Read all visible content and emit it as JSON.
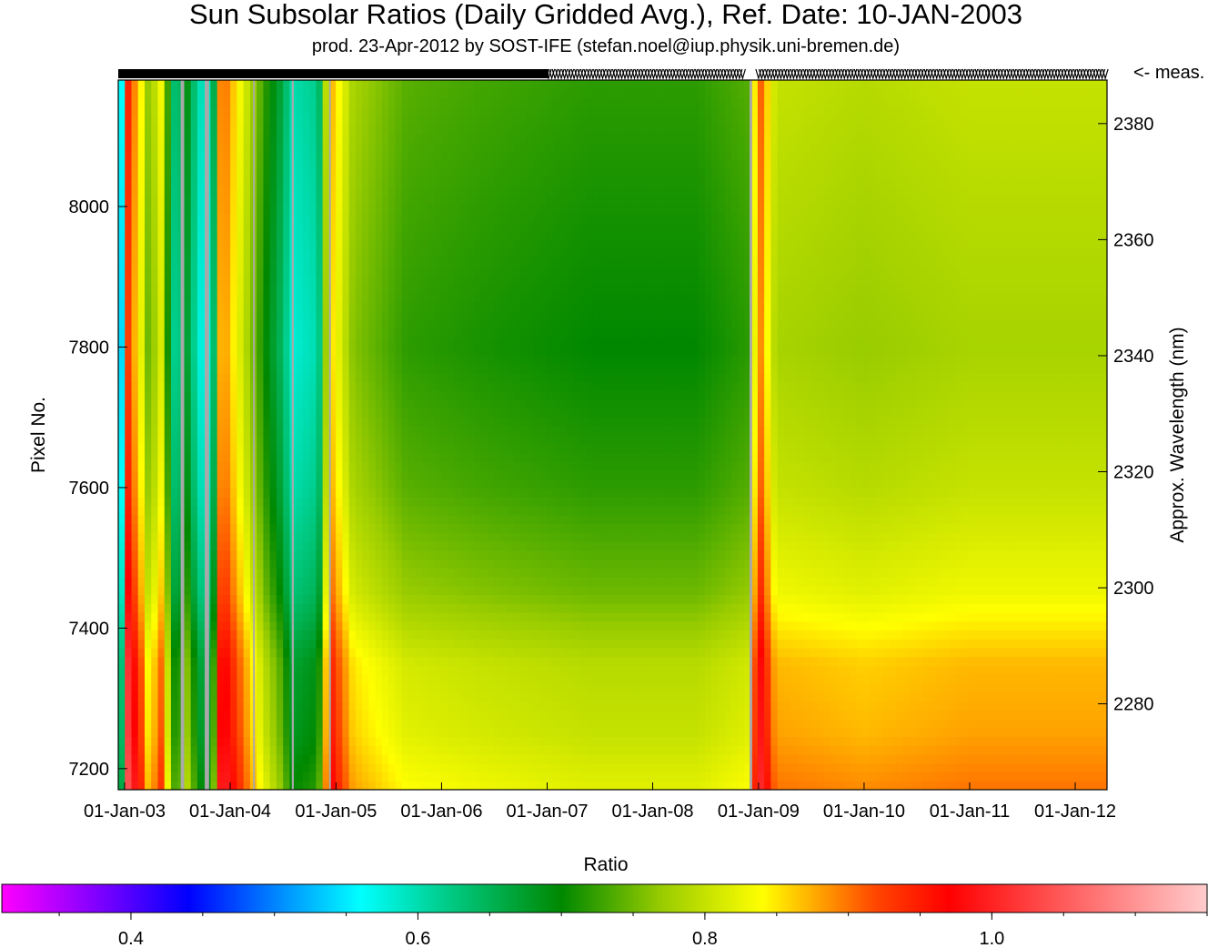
{
  "chart_data": {
    "type": "heatmap",
    "title": "Sun Subsolar Ratios (Daily Gridded Avg.), Ref. Date: 10-JAN-2003",
    "subtitle": "prod. 23-Apr-2012 by SOST-IFE (stefan.noel@iup.physik.uni-bremen.de)",
    "ylabel": "Pixel No.",
    "ylabel_right": "Approx. Wavelength (nm)",
    "measurement_label": "<- meas.",
    "x_ticks": [
      "01-Jan-03",
      "01-Jan-04",
      "01-Jan-05",
      "01-Jan-06",
      "01-Jan-07",
      "01-Jan-08",
      "01-Jan-09",
      "01-Jan-10",
      "01-Jan-11",
      "01-Jan-12"
    ],
    "xlim": [
      "2002-12-10",
      "2012-04-20"
    ],
    "y_ticks": [
      7200,
      7400,
      7600,
      7800,
      8000
    ],
    "ylim": [
      7170,
      8180
    ],
    "y_right_ticks": [
      2280,
      2300,
      2320,
      2340,
      2360,
      2380
    ],
    "y_right_lim": [
      2265.2,
      2387.5
    ],
    "colorbar": {
      "label": "Ratio",
      "ticks": [
        0.4,
        0.6,
        0.8,
        1.0
      ],
      "tick_labels": [
        "0.4",
        "0.6",
        "0.8",
        "1.0"
      ],
      "range": [
        0.31,
        1.15
      ],
      "stops": [
        {
          "value": 0.31,
          "color": "#ff00ff"
        },
        {
          "value": 0.39,
          "color": "#6600ff"
        },
        {
          "value": 0.44,
          "color": "#0000ff"
        },
        {
          "value": 0.51,
          "color": "#0099ff"
        },
        {
          "value": 0.56,
          "color": "#00ffff"
        },
        {
          "value": 0.62,
          "color": "#00cc88"
        },
        {
          "value": 0.7,
          "color": "#008800"
        },
        {
          "value": 0.77,
          "color": "#99cc00"
        },
        {
          "value": 0.84,
          "color": "#ffff00"
        },
        {
          "value": 0.92,
          "color": "#ff4400"
        },
        {
          "value": 0.97,
          "color": "#ff0000"
        },
        {
          "value": 1.15,
          "color": "#ffcccc"
        }
      ]
    },
    "time_profile": [
      {
        "date": "2002-12-10",
        "ratio": 0.58
      },
      {
        "date": "2002-12-28",
        "ratio": 0.55
      },
      {
        "date": "2003-01-06",
        "ratio": 0.96
      },
      {
        "date": "2003-02-01",
        "ratio": 0.9
      },
      {
        "date": "2003-03-01",
        "ratio": 0.84
      },
      {
        "date": "2003-04-01",
        "ratio": 0.74
      },
      {
        "date": "2003-05-01",
        "ratio": 0.86
      },
      {
        "date": "2003-06-01",
        "ratio": 0.72
      },
      {
        "date": "2003-07-01",
        "ratio": 0.6
      },
      {
        "date": "2003-08-01",
        "ratio": 0.7
      },
      {
        "date": "2003-09-01",
        "ratio": 0.63
      },
      {
        "date": "2003-10-01",
        "ratio": 0.58
      },
      {
        "date": "2003-11-01",
        "ratio": 0.61
      },
      {
        "date": "2003-12-01",
        "ratio": 0.92
      },
      {
        "date": "2004-01-01",
        "ratio": 0.88
      },
      {
        "date": "2004-03-01",
        "ratio": 0.8
      },
      {
        "date": "2004-05-01",
        "ratio": 0.72
      },
      {
        "date": "2004-07-01",
        "ratio": 0.66
      },
      {
        "date": "2004-08-01",
        "ratio": 0.6
      },
      {
        "date": "2004-11-01",
        "ratio": 0.62
      },
      {
        "date": "2004-12-10",
        "ratio": 0.88
      },
      {
        "date": "2005-03-01",
        "ratio": 0.78
      },
      {
        "date": "2005-09-01",
        "ratio": 0.74
      },
      {
        "date": "2006-06-01",
        "ratio": 0.73
      },
      {
        "date": "2007-06-01",
        "ratio": 0.72
      },
      {
        "date": "2008-06-01",
        "ratio": 0.72
      },
      {
        "date": "2008-12-15",
        "ratio": 0.74
      },
      {
        "date": "2008-12-20",
        "ratio": 0.95
      },
      {
        "date": "2009-03-01",
        "ratio": 0.8
      },
      {
        "date": "2010-01-01",
        "ratio": 0.79
      },
      {
        "date": "2011-01-01",
        "ratio": 0.8
      },
      {
        "date": "2012-04-20",
        "ratio": 0.8
      }
    ],
    "pixel_profile": [
      {
        "pixel": 7170,
        "ratio_offset": 0.1
      },
      {
        "pixel": 7250,
        "ratio_offset": 0.08
      },
      {
        "pixel": 7350,
        "ratio_offset": 0.07
      },
      {
        "pixel": 7450,
        "ratio_offset": 0.03
      },
      {
        "pixel": 7600,
        "ratio_offset": 0.0
      },
      {
        "pixel": 7800,
        "ratio_offset": -0.02
      },
      {
        "pixel": 8000,
        "ratio_offset": -0.01
      },
      {
        "pixel": 8180,
        "ratio_offset": 0.0
      }
    ],
    "data_gaps": [
      {
        "start": "2003-07-14",
        "end": "2003-07-26"
      },
      {
        "start": "2003-10-05",
        "end": "2003-10-20"
      },
      {
        "start": "2004-03-20",
        "end": "2004-03-26"
      },
      {
        "start": "2004-08-01",
        "end": "2004-08-08"
      },
      {
        "start": "2004-12-08",
        "end": "2004-12-14"
      },
      {
        "start": "2008-12-01",
        "end": "2008-12-10"
      }
    ],
    "grid": false
  }
}
